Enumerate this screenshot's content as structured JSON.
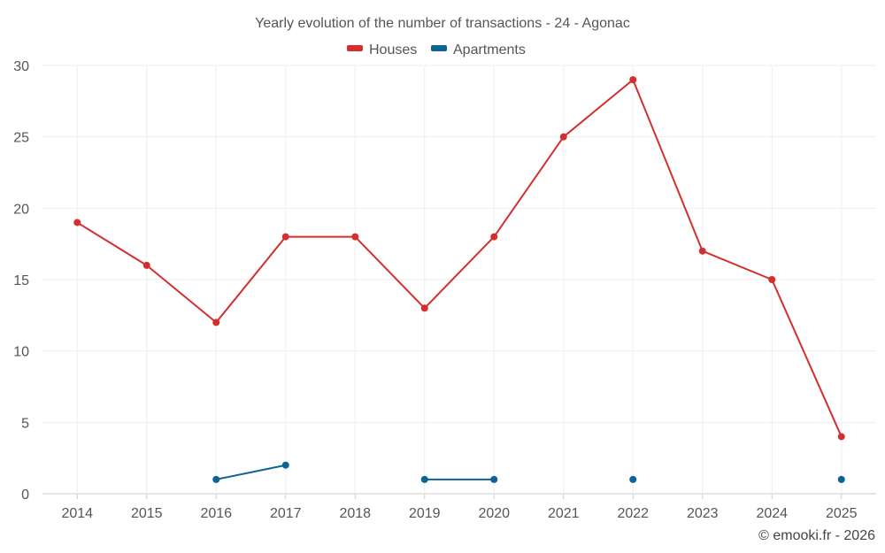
{
  "chart_data": {
    "type": "line",
    "title": "Yearly evolution of the number of transactions - 24 - Agonac",
    "categories": [
      "2014",
      "2015",
      "2016",
      "2017",
      "2018",
      "2019",
      "2020",
      "2021",
      "2022",
      "2023",
      "2024",
      "2025"
    ],
    "ylim": [
      0,
      30
    ],
    "yticks": [
      0,
      5,
      10,
      15,
      20,
      25,
      30
    ],
    "legend_position": "top-center",
    "series": [
      {
        "name": "Houses",
        "color": "#d32f2f",
        "values": [
          19,
          16,
          12,
          18,
          18,
          13,
          18,
          25,
          29,
          17,
          15,
          4
        ]
      },
      {
        "name": "Apartments",
        "color": "#0d6296",
        "values": [
          null,
          null,
          1,
          2,
          null,
          1,
          1,
          null,
          1,
          null,
          null,
          1
        ]
      }
    ],
    "credit": "© emooki.fr - 2026"
  }
}
